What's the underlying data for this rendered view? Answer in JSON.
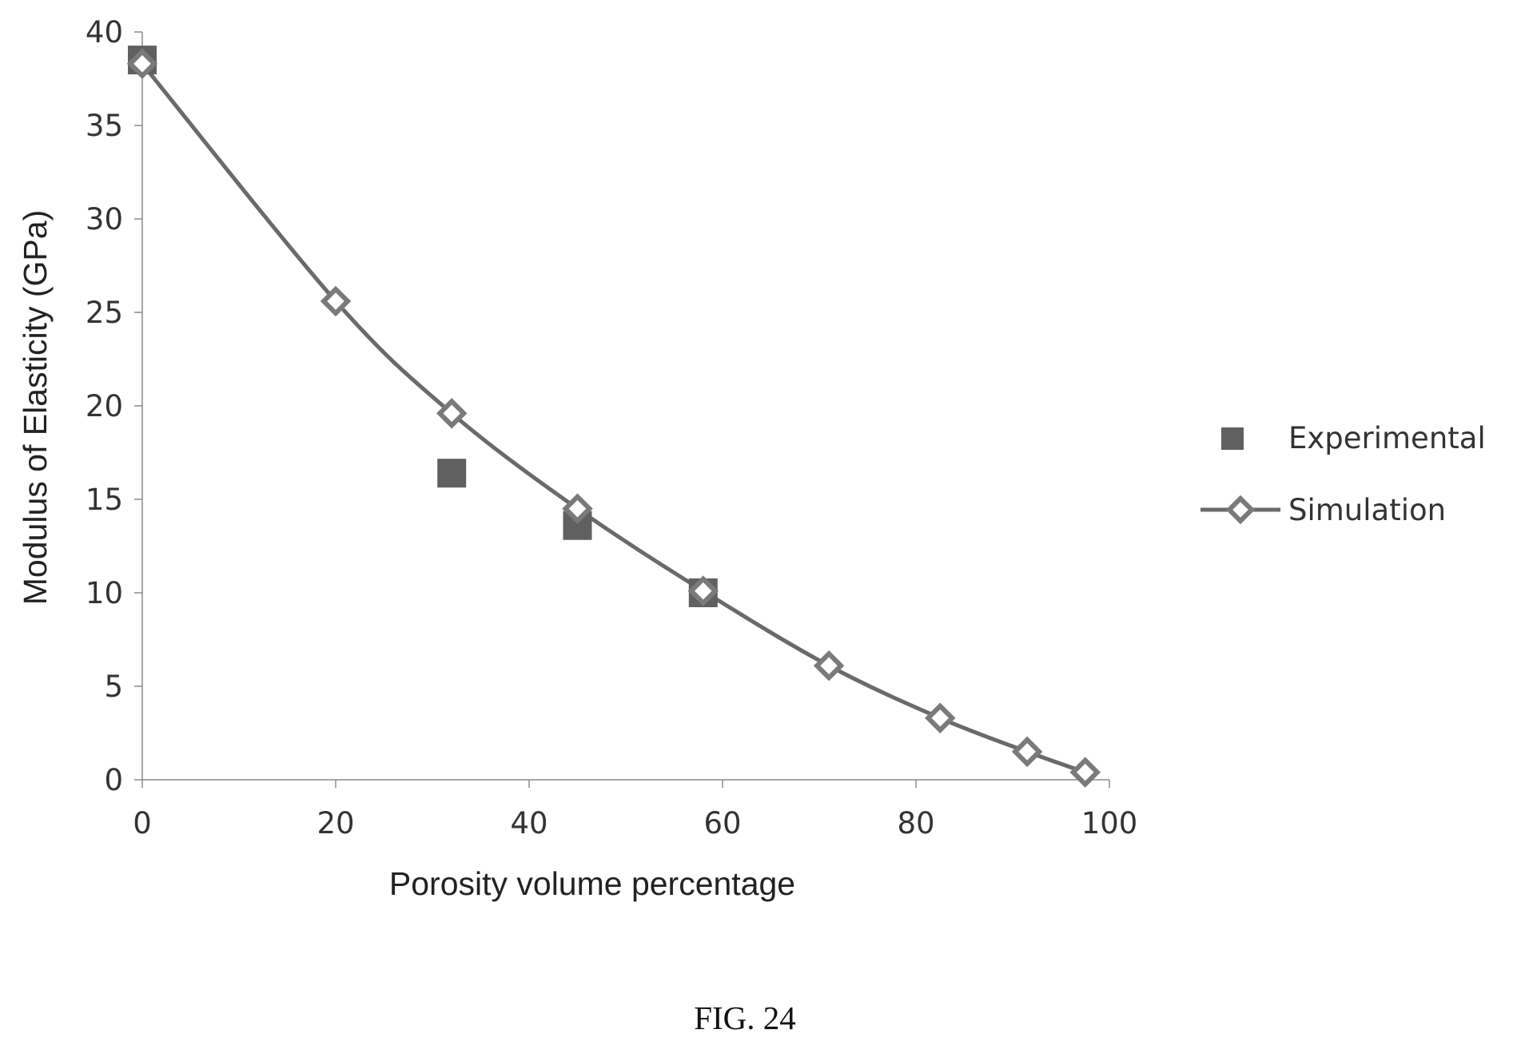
{
  "chart_data": {
    "type": "scatter",
    "title": "",
    "xlabel": "Porosity volume percentage",
    "ylabel": "Modulus of Elasticity (GPa)",
    "xlim": [
      0,
      100
    ],
    "ylim": [
      0,
      40
    ],
    "x_ticks": [
      0,
      20,
      40,
      60,
      80,
      100
    ],
    "y_ticks": [
      0,
      5,
      10,
      15,
      20,
      25,
      30,
      35,
      40
    ],
    "grid": false,
    "legend_position": "right",
    "series": [
      {
        "name": "Experimental",
        "marker": "square",
        "line": false,
        "color": "#606060",
        "points": [
          [
            0,
            38.5
          ],
          [
            32,
            16.4
          ],
          [
            45,
            13.6
          ],
          [
            58,
            10.0
          ]
        ]
      },
      {
        "name": "Simulation",
        "marker": "diamond",
        "line": true,
        "color": "#707070",
        "points": [
          [
            0,
            38.3
          ],
          [
            20,
            25.6
          ],
          [
            32,
            19.6
          ],
          [
            45,
            14.5
          ],
          [
            58,
            10.1
          ],
          [
            71,
            6.1
          ],
          [
            82.5,
            3.3
          ],
          [
            91.5,
            1.5
          ],
          [
            97.5,
            0.4
          ]
        ]
      }
    ]
  },
  "caption": "FIG. 24"
}
